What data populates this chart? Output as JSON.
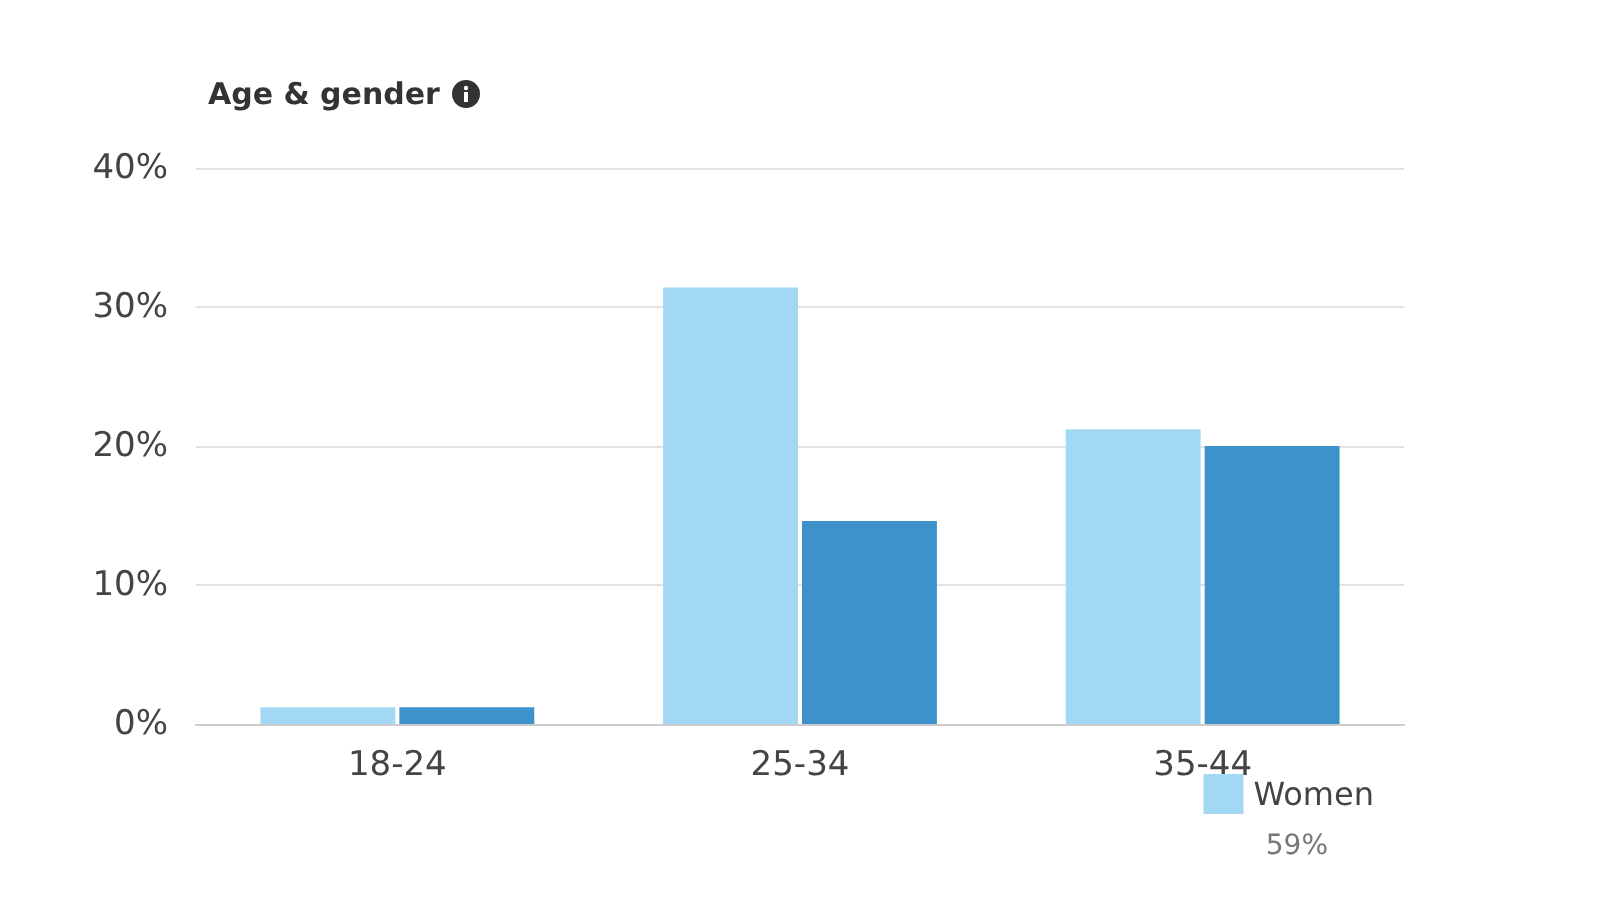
{
  "chart_data": {
    "type": "bar",
    "title": "Age & gender",
    "categories": [
      "18-24",
      "25-34",
      "35-44"
    ],
    "series": [
      {
        "name": "Women",
        "color": "#a3d8f5",
        "values": [
          1.2,
          31.4,
          21.2
        ]
      },
      {
        "color": "#3d92cc",
        "values": [
          1.2,
          14.6,
          20.0
        ]
      }
    ],
    "ylim": [
      0,
      40
    ],
    "yticks": [
      {
        "value": 0,
        "label": "0%"
      },
      {
        "value": 10,
        "label": "10%"
      },
      {
        "value": 20,
        "label": "20%"
      },
      {
        "value": 30,
        "label": "30%"
      },
      {
        "value": 40,
        "label": "40%"
      }
    ],
    "grid": "y",
    "legend": "bottom right",
    "annotations": [
      "59%"
    ]
  }
}
